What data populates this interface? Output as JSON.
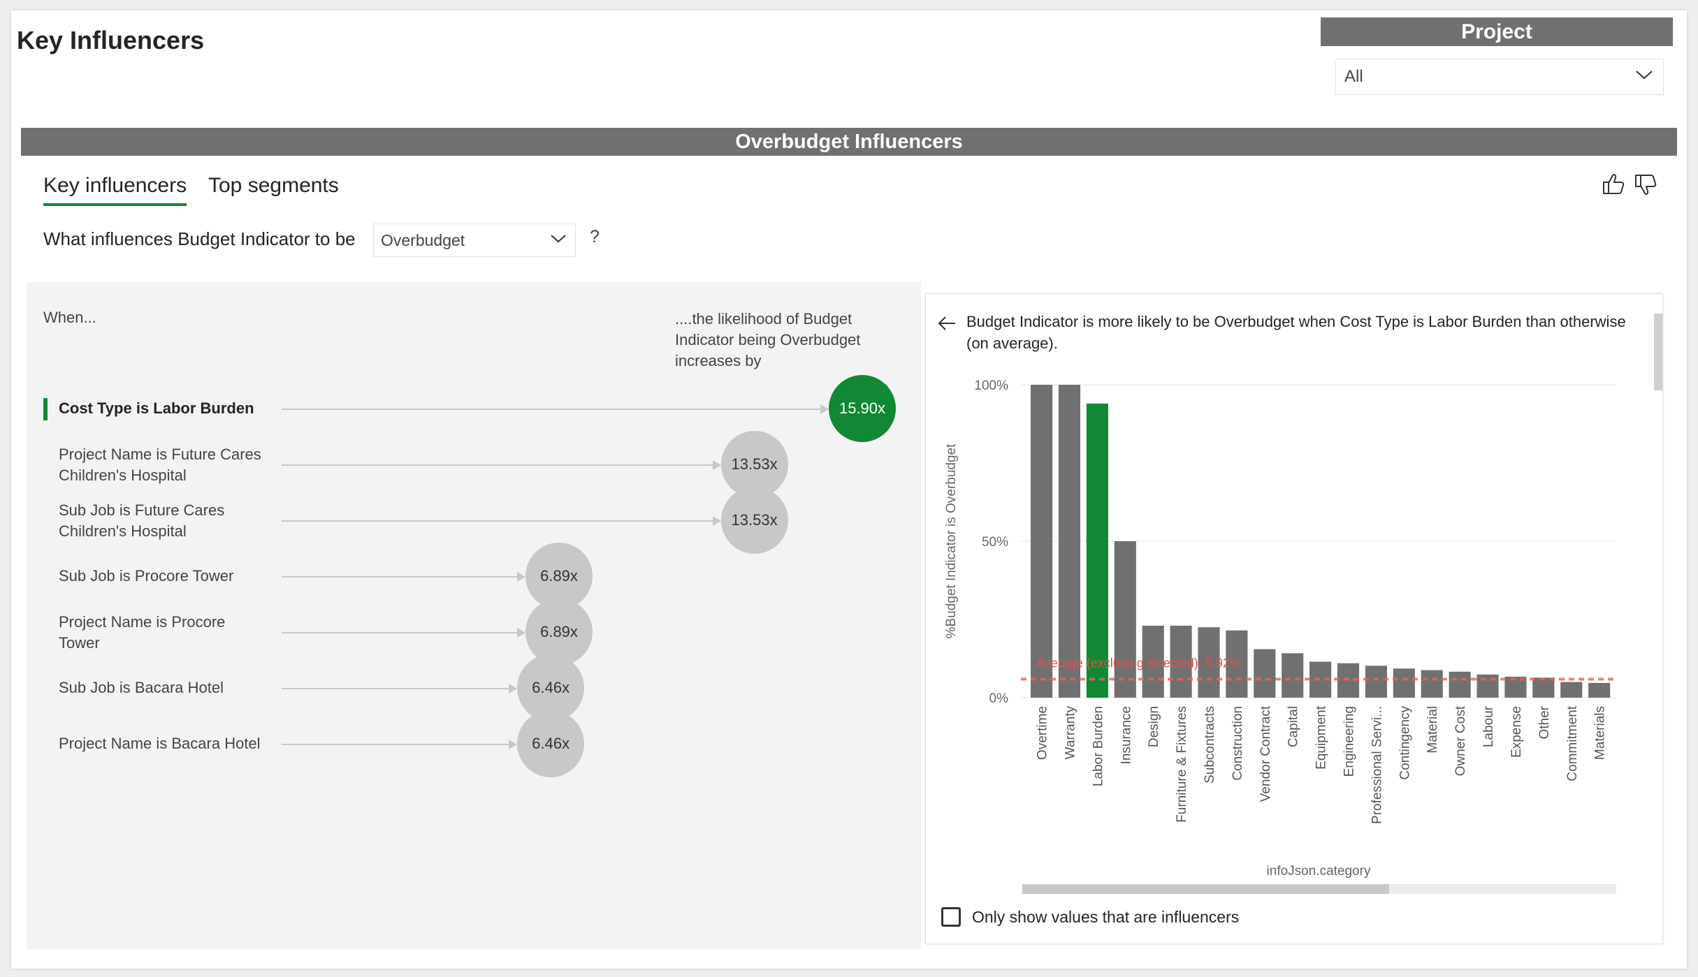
{
  "report": {
    "title": "Key Influencers"
  },
  "slicer": {
    "header": "Project",
    "selected": "All"
  },
  "visual": {
    "header": "Overbudget Influencers",
    "tabs": [
      {
        "label": "Key influencers",
        "active": true
      },
      {
        "label": "Top segments",
        "active": false
      }
    ],
    "question": "What influences Budget Indicator to be",
    "target_value": "Overbudget",
    "help": "?"
  },
  "left_panel": {
    "when_label": "When...",
    "likelihood_label": "....the likelihood of Budget Indicator being Overbudget increases by",
    "influencers": [
      {
        "label": "Cost Type is Labor Burden",
        "value": "15.90x",
        "multiplier": 15.9,
        "selected": true
      },
      {
        "label": "Project Name is Future Cares Children's Hospital",
        "value": "13.53x",
        "multiplier": 13.53,
        "selected": false
      },
      {
        "label": "Sub Job is Future Cares Children's Hospital",
        "value": "13.53x",
        "multiplier": 13.53,
        "selected": false
      },
      {
        "label": "Sub Job is Procore Tower",
        "value": "6.89x",
        "multiplier": 6.89,
        "selected": false
      },
      {
        "label": "Project Name is Procore Tower",
        "value": "6.89x",
        "multiplier": 6.89,
        "selected": false
      },
      {
        "label": "Sub Job is Bacara Hotel",
        "value": "6.46x",
        "multiplier": 6.46,
        "selected": false
      },
      {
        "label": "Project Name is Bacara Hotel",
        "value": "6.46x",
        "multiplier": 6.46,
        "selected": false
      }
    ]
  },
  "detail": {
    "title": "Budget Indicator is more likely to be Overbudget when Cost Type is Labor Burden than otherwise (on average).",
    "checkbox_label": "Only show values that are influencers",
    "checkbox_checked": false
  },
  "chart_data": {
    "type": "bar",
    "ylabel": "%Budget Indicator is Overbudget",
    "xlabel": "infoJson.category",
    "yticks": [
      "0%",
      "50%",
      "100%"
    ],
    "ylim": [
      0,
      100
    ],
    "highlight": "Labor Burden",
    "highlight_color": "#118833",
    "bar_color": "#707070",
    "reference_line": {
      "label": "Average (excluding selected): 5.92%",
      "value": 5.92,
      "color": "#e06666"
    },
    "categories": [
      "Overtime",
      "Warranty",
      "Labor Burden",
      "Insurance",
      "Design",
      "Furniture & Fixtures",
      "Subcontracts",
      "Construction",
      "Vendor Contract",
      "Capital",
      "Equipment",
      "Engineering",
      "Professional Servi...",
      "Contingency",
      "Material",
      "Owner Cost",
      "Labour",
      "Expense",
      "Other",
      "Commitment",
      "Materials"
    ],
    "values": [
      100,
      100,
      94,
      50,
      23,
      23,
      22.5,
      21.5,
      15.5,
      14.2,
      11.5,
      11,
      10.2,
      9.3,
      8.8,
      8.3,
      7.4,
      6.7,
      6.4,
      5,
      4.7
    ]
  }
}
